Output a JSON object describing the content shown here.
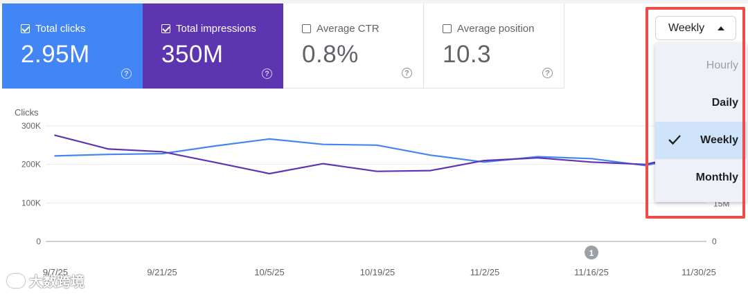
{
  "metrics": [
    {
      "label": "Total clicks",
      "value": "2.95M",
      "checked": true,
      "color": "#4285f4"
    },
    {
      "label": "Total impressions",
      "value": "350M",
      "checked": true,
      "color": "#5e35b1"
    },
    {
      "label": "Average CTR",
      "value": "0.8%",
      "checked": false
    },
    {
      "label": "Average position",
      "value": "10.3",
      "checked": false
    }
  ],
  "help_glyph": "?",
  "granularity": {
    "current": "Weekly",
    "options": [
      {
        "label": "Hourly",
        "disabled": true
      },
      {
        "label": "Daily"
      },
      {
        "label": "Weekly",
        "selected": true
      },
      {
        "label": "Monthly"
      }
    ]
  },
  "chart_data": {
    "type": "line",
    "ylabel": "Clicks",
    "y_ticks": [
      "0",
      "100K",
      "200K",
      "300K"
    ],
    "ylim": [
      0,
      300000
    ],
    "right_ticks": [
      "0",
      "15M"
    ],
    "x_tick_labels": [
      "9/7/25",
      "9/21/25",
      "10/5/25",
      "10/19/25",
      "11/2/25",
      "11/16/25",
      "11/30/25"
    ],
    "x": [
      "9/7/25",
      "9/14/25",
      "9/21/25",
      "9/28/25",
      "10/5/25",
      "10/12/25",
      "10/19/25",
      "10/26/25",
      "11/2/25",
      "11/9/25",
      "11/16/25",
      "11/23/25",
      "11/30/25"
    ],
    "series": [
      {
        "name": "Total clicks",
        "color": "#4285f4",
        "values": [
          222000,
          226000,
          228000,
          248000,
          266000,
          252000,
          250000,
          224000,
          206000,
          220000,
          215000,
          197000,
          226000
        ]
      },
      {
        "name": "Total impressions",
        "color": "#5e35b1",
        "values": [
          276000,
          240000,
          233000,
          205000,
          176000,
          202000,
          182000,
          184000,
          210000,
          217000,
          206000,
          200000,
          230000
        ]
      }
    ],
    "annotation": "1",
    "grid": true
  },
  "watermark": "大数跨境"
}
